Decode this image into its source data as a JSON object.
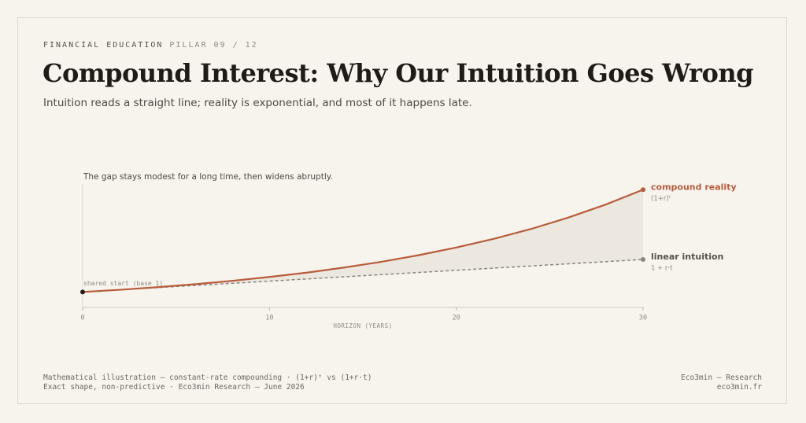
{
  "header": {
    "kicker": "FINANCIAL EDUCATION",
    "pillar": "PILLAR 09 / 12",
    "title": "Compound Interest: Why Our Intuition Goes Wrong",
    "subtitle": "Intuition reads a straight line; reality is exponential, and most of it happens late."
  },
  "chart_data": {
    "type": "line",
    "annotation": "The gap stays modest for a long time, then widens abruptly.",
    "start_label": "shared start (base 1)",
    "x_label": "HORIZON (YEARS)",
    "x": [
      0,
      2,
      4,
      6,
      8,
      10,
      12,
      14,
      16,
      18,
      20,
      22,
      24,
      26,
      28,
      30
    ],
    "xlim": [
      0,
      30
    ],
    "xticks": [
      0,
      10,
      20,
      30
    ],
    "ylim": [
      0,
      8
    ],
    "gap_fill": "#ece7df",
    "series": [
      {
        "name": "compound reality",
        "formula": "(1+r)ᵗ",
        "color": "#b85c3c",
        "dash": false,
        "values": [
          1,
          1.14,
          1.31,
          1.5,
          1.72,
          1.97,
          2.25,
          2.58,
          2.95,
          3.38,
          3.87,
          4.43,
          5.07,
          5.81,
          6.65,
          7.61
        ]
      },
      {
        "name": "linear intuition",
        "formula": "1 + r·t",
        "color": "#8a8680",
        "dash": true,
        "values": [
          1,
          1.14,
          1.28,
          1.42,
          1.56,
          1.7,
          1.84,
          1.98,
          2.12,
          2.26,
          2.4,
          2.54,
          2.68,
          2.82,
          2.96,
          3.1
        ]
      }
    ]
  },
  "footer": {
    "left": [
      "Mathematical illustration — constant-rate compounding · (1+r)ᵗ vs (1+r·t)",
      "Exact shape, non-predictive · Eco3min Research — June 2026"
    ],
    "right": [
      "Eco3min — Research",
      "eco3min.fr"
    ]
  }
}
